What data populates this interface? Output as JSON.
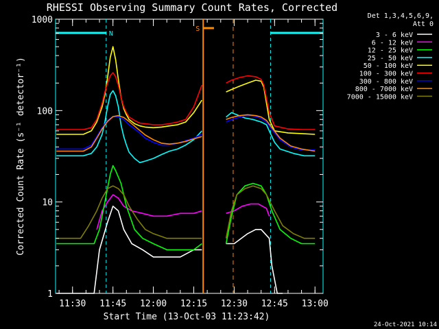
{
  "chart_data": {
    "type": "line",
    "title": "RHESSI Observing Summary Count Rates, Corrected",
    "xlabel": "Start Time (13-Oct-03 11:23:42)",
    "ylabel": "Corrected Count Rate (s⁻¹ detector⁻¹)",
    "y_scale": "log",
    "ylim": [
      1,
      1000
    ],
    "y_ticks": [
      {
        "value": 1,
        "label": "1"
      },
      {
        "value": 10,
        "label": "10"
      },
      {
        "value": 100,
        "label": "100"
      },
      {
        "value": 1000,
        "label": "1000"
      }
    ],
    "xlim": [
      "11:23:42",
      "13:03:00"
    ],
    "x_ticks": [
      {
        "value": "11:30",
        "label": "11:30"
      },
      {
        "value": "11:45",
        "label": "11:45"
      },
      {
        "value": "12:00",
        "label": "12:00"
      },
      {
        "value": "12:15",
        "label": "12:15"
      },
      {
        "value": "12:30",
        "label": "12:30"
      },
      {
        "value": "12:45",
        "label": "12:45"
      },
      {
        "value": "13:00",
        "label": "13:00"
      }
    ],
    "legend": {
      "title_lines": [
        "Det 1,3,4,5,6,9,",
        "Att 0"
      ],
      "placement": "outside-right"
    },
    "series": [
      {
        "name": "3 - 6 keV",
        "color": "#ffffff",
        "x": [
          "11:24",
          "11:38",
          "11:40",
          "11:43",
          "11:45",
          "11:47",
          "11:49",
          "11:52",
          "11:56",
          "12:00",
          "12:05",
          "12:10",
          "12:15",
          "12:18",
          "12:27",
          "12:30",
          "12:35",
          "12:38",
          "12:40",
          "12:43",
          "12:44",
          "12:46",
          "12:48"
        ],
        "y": [
          1,
          1,
          3,
          6,
          9,
          8,
          5,
          3.5,
          3,
          2.5,
          2.5,
          2.5,
          3,
          3,
          3.5,
          3.5,
          4.5,
          5,
          5,
          4,
          2,
          1,
          1
        ]
      },
      {
        "name": "6 - 12 keV",
        "color": "#ff00ff",
        "x": [
          "11:39",
          "11:41",
          "11:43",
          "11:45",
          "11:47",
          "11:49",
          "11:52",
          "11:56",
          "12:00",
          "12:05",
          "12:10",
          "12:15",
          "12:18",
          "12:27",
          "12:30",
          "12:33",
          "12:36",
          "12:39",
          "12:42",
          "12:43"
        ],
        "y": [
          5,
          8,
          10,
          12,
          11,
          9,
          8,
          7.5,
          7,
          7,
          7.5,
          7.5,
          8,
          7.5,
          8,
          9,
          9.5,
          9.5,
          8.5,
          7
        ]
      },
      {
        "name": "12 - 25 keV",
        "color": "#00ff00",
        "x": [
          "11:24",
          "11:38",
          "11:40",
          "11:42",
          "11:44",
          "11:45",
          "11:46",
          "11:48",
          "11:50",
          "11:53",
          "11:56",
          "12:00",
          "12:05",
          "12:10",
          "12:15",
          "12:18",
          "12:27",
          "12:29",
          "12:31",
          "12:34",
          "12:37",
          "12:40",
          "12:42",
          "12:44",
          "12:47",
          "12:51",
          "12:55",
          "13:00"
        ],
        "y": [
          3.5,
          3.5,
          5,
          10,
          20,
          25,
          22,
          16,
          9,
          5,
          4,
          3.5,
          3,
          3,
          3,
          3.5,
          3.5,
          7,
          12,
          15,
          16,
          15,
          12,
          8,
          5,
          4,
          3.5,
          3.5
        ]
      },
      {
        "name": "25 - 50 keV",
        "color": "#00ffff",
        "x": [
          "11:24",
          "11:34",
          "11:37",
          "11:39",
          "11:41",
          "11:42",
          "11:43",
          "11:44",
          "11:45",
          "11:46",
          "11:47",
          "11:48",
          "11:49",
          "11:50",
          "11:51",
          "11:53",
          "11:55",
          "11:57",
          "12:00",
          "12:03",
          "12:06",
          "12:09",
          "12:12",
          "12:15",
          "12:18",
          "12:27",
          "12:29",
          "12:31",
          "12:34",
          "12:37",
          "12:40",
          "12:42",
          "12:43",
          "12:45",
          "12:47",
          "12:52",
          "12:56",
          "13:00"
        ],
        "y": [
          32,
          32,
          34,
          40,
          55,
          75,
          110,
          150,
          165,
          145,
          110,
          70,
          52,
          42,
          35,
          30,
          27,
          28,
          30,
          33,
          36,
          38,
          42,
          48,
          60,
          85,
          95,
          90,
          83,
          80,
          75,
          70,
          60,
          45,
          38,
          34,
          32,
          32
        ]
      },
      {
        "name": "50 - 100 keV",
        "color": "#ffff00",
        "x": [
          "11:24",
          "11:34",
          "11:37",
          "11:39",
          "11:41",
          "11:42",
          "11:43",
          "11:44",
          "11:45",
          "11:46",
          "11:47",
          "11:48",
          "11:49",
          "11:50",
          "11:51",
          "11:53",
          "11:55",
          "11:57",
          "12:00",
          "12:03",
          "12:06",
          "12:09",
          "12:12",
          "12:15",
          "12:18",
          "12:27",
          "12:29",
          "12:32",
          "12:35",
          "12:38",
          "12:40",
          "12:41",
          "12:43",
          "12:45",
          "12:50",
          "12:55",
          "13:00"
        ],
        "y": [
          55,
          55,
          60,
          75,
          110,
          150,
          230,
          380,
          500,
          360,
          220,
          140,
          105,
          90,
          80,
          72,
          68,
          66,
          65,
          66,
          68,
          70,
          75,
          95,
          130,
          160,
          170,
          185,
          200,
          215,
          210,
          180,
          80,
          60,
          57,
          56,
          55
        ]
      },
      {
        "name": "100 - 300 keV",
        "color": "#ff0000",
        "x": [
          "11:24",
          "11:34",
          "11:37",
          "11:39",
          "11:41",
          "11:42",
          "11:43",
          "11:44",
          "11:45",
          "11:46",
          "11:47",
          "11:48",
          "11:49",
          "11:50",
          "11:51",
          "11:53",
          "11:55",
          "11:57",
          "12:00",
          "12:03",
          "12:06",
          "12:09",
          "12:12",
          "12:15",
          "12:18",
          "12:27",
          "12:29",
          "12:32",
          "12:35",
          "12:38",
          "12:40",
          "12:41",
          "12:43",
          "12:45",
          "12:50",
          "12:55",
          "13:00"
        ],
        "y": [
          62,
          62,
          65,
          80,
          120,
          160,
          200,
          240,
          260,
          235,
          190,
          140,
          110,
          95,
          85,
          78,
          73,
          72,
          70,
          70,
          72,
          75,
          80,
          110,
          190,
          200,
          215,
          230,
          240,
          235,
          220,
          190,
          95,
          68,
          63,
          62,
          62
        ]
      },
      {
        "name": "300 - 800 keV",
        "color": "#0000ff",
        "x": [
          "11:24",
          "11:34",
          "11:37",
          "11:39",
          "11:41",
          "11:43",
          "11:45",
          "11:47",
          "11:49",
          "11:51",
          "11:54",
          "11:57",
          "12:00",
          "12:03",
          "12:06",
          "12:09",
          "12:12",
          "12:15",
          "12:18",
          "12:27",
          "12:29",
          "12:32",
          "12:35",
          "12:38",
          "12:40",
          "12:42",
          "12:44",
          "12:47",
          "12:51",
          "12:55",
          "13:00"
        ],
        "y": [
          38,
          38,
          42,
          52,
          65,
          78,
          86,
          86,
          80,
          70,
          60,
          50,
          45,
          42,
          42,
          44,
          47,
          50,
          55,
          75,
          80,
          85,
          88,
          86,
          82,
          75,
          62,
          48,
          40,
          37,
          37
        ]
      },
      {
        "name": "800 - 7000 keV",
        "color": "#ff8c00",
        "x": [
          "11:24",
          "11:34",
          "11:37",
          "11:39",
          "11:41",
          "11:43",
          "11:45",
          "11:47",
          "11:49",
          "11:51",
          "11:54",
          "11:57",
          "12:00",
          "12:03",
          "12:06",
          "12:09",
          "12:12",
          "12:15",
          "12:18",
          "12:27",
          "12:29",
          "12:32",
          "12:35",
          "12:38",
          "12:40",
          "12:42",
          "12:44",
          "12:47",
          "12:51",
          "12:55",
          "13:00"
        ],
        "y": [
          36,
          36,
          40,
          50,
          63,
          76,
          86,
          88,
          84,
          76,
          64,
          54,
          48,
          44,
          43,
          44,
          46,
          49,
          52,
          80,
          84,
          88,
          90,
          88,
          85,
          78,
          65,
          50,
          41,
          38,
          36
        ]
      },
      {
        "name": "7000 - 15000 keV",
        "color": "#808000",
        "x": [
          "11:24",
          "11:33",
          "11:36",
          "11:39",
          "11:41",
          "11:43",
          "11:45",
          "11:47",
          "11:49",
          "11:51",
          "11:54",
          "11:57",
          "12:00",
          "12:05",
          "12:10",
          "12:15",
          "12:18",
          "12:27",
          "12:29",
          "12:31",
          "12:34",
          "12:37",
          "12:40",
          "12:42",
          "12:45",
          "12:48",
          "12:52",
          "12:56",
          "13:00"
        ],
        "y": [
          4,
          4,
          5.5,
          8,
          11,
          14,
          15,
          14,
          12,
          9,
          6.5,
          5,
          4.5,
          4,
          4,
          4,
          4,
          4,
          8,
          12,
          14,
          15,
          14,
          12,
          8,
          5.5,
          4.5,
          4,
          4
        ]
      }
    ],
    "annotations": [
      {
        "kind": "time_band",
        "label": "N",
        "color": "#00ffff",
        "from": "11:23:42",
        "to": "11:42:30",
        "line_style": "solid",
        "edge_style": "dashed"
      },
      {
        "kind": "time_band",
        "label": "",
        "color": "#00ffff",
        "from": "12:43:30",
        "to": "13:03:00",
        "line_style": "solid",
        "edge_style": "dashed"
      },
      {
        "kind": "time_band",
        "label": "S",
        "color": "#ff8c00",
        "from": "12:18:30",
        "to": "12:22:30",
        "line_style": "solid",
        "edge_style": "dashed"
      }
    ],
    "data_gap": [
      "12:18:30",
      "12:26:30"
    ]
  },
  "footer": {
    "timestamp": "24-Oct-2021 10:14"
  },
  "colors": {
    "background": "#000000",
    "axes": "#ffffff"
  }
}
